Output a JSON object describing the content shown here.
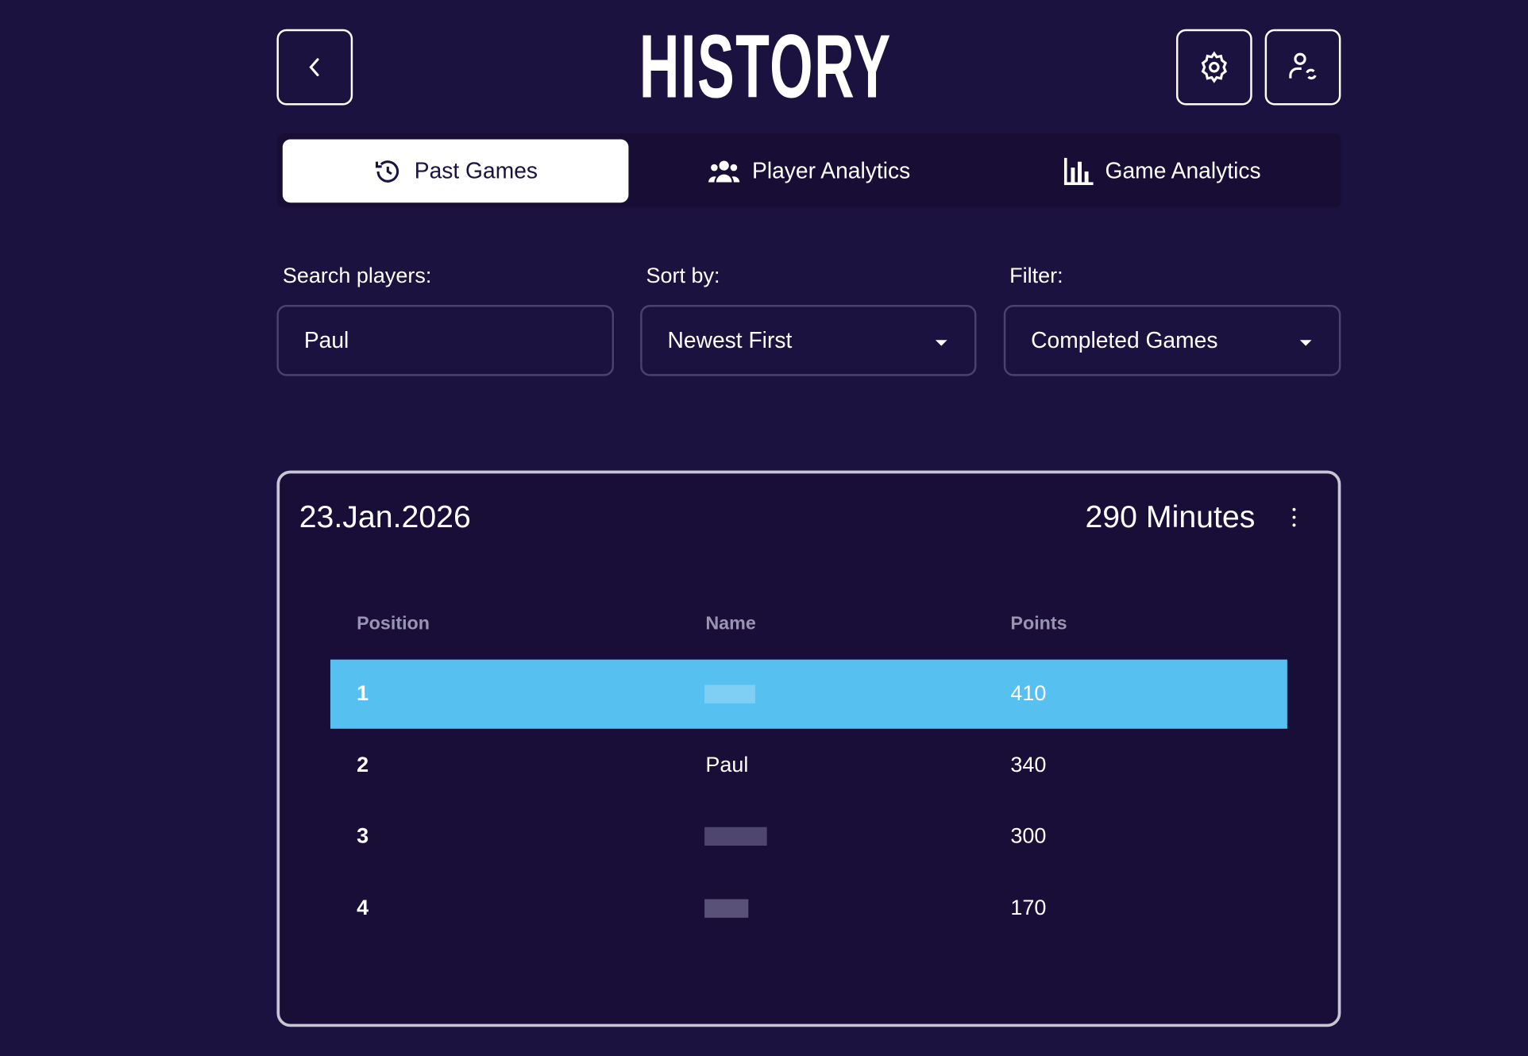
{
  "header": {
    "title": "HISTORY",
    "back_icon": "chevron-left-icon",
    "settings_icon": "gear-icon",
    "switch_user_icon": "user-sync-icon"
  },
  "tabs": [
    {
      "label": "Past Games",
      "icon": "history-icon",
      "active": true
    },
    {
      "label": "Player Analytics",
      "icon": "users-icon",
      "active": false
    },
    {
      "label": "Game Analytics",
      "icon": "bar-chart-icon",
      "active": false
    }
  ],
  "filters": {
    "search": {
      "label": "Search players:",
      "value": "Paul"
    },
    "sort": {
      "label": "Sort by:",
      "value": "Newest First"
    },
    "filter": {
      "label": "Filter:",
      "value": "Completed Games"
    }
  },
  "game": {
    "date": "23.Jan.2026",
    "duration": "290 Minutes",
    "columns": [
      "Position",
      "Name",
      "Points"
    ],
    "rows": [
      {
        "position": "1",
        "name": null,
        "points": "410",
        "highlighted": true
      },
      {
        "position": "2",
        "name": "Paul",
        "points": "340"
      },
      {
        "position": "3",
        "name": null,
        "points": "300"
      },
      {
        "position": "4",
        "name": null,
        "points": "170"
      }
    ]
  },
  "colors": {
    "background": "#1b1240",
    "card": "#180e38",
    "highlight": "#56c0f0"
  }
}
